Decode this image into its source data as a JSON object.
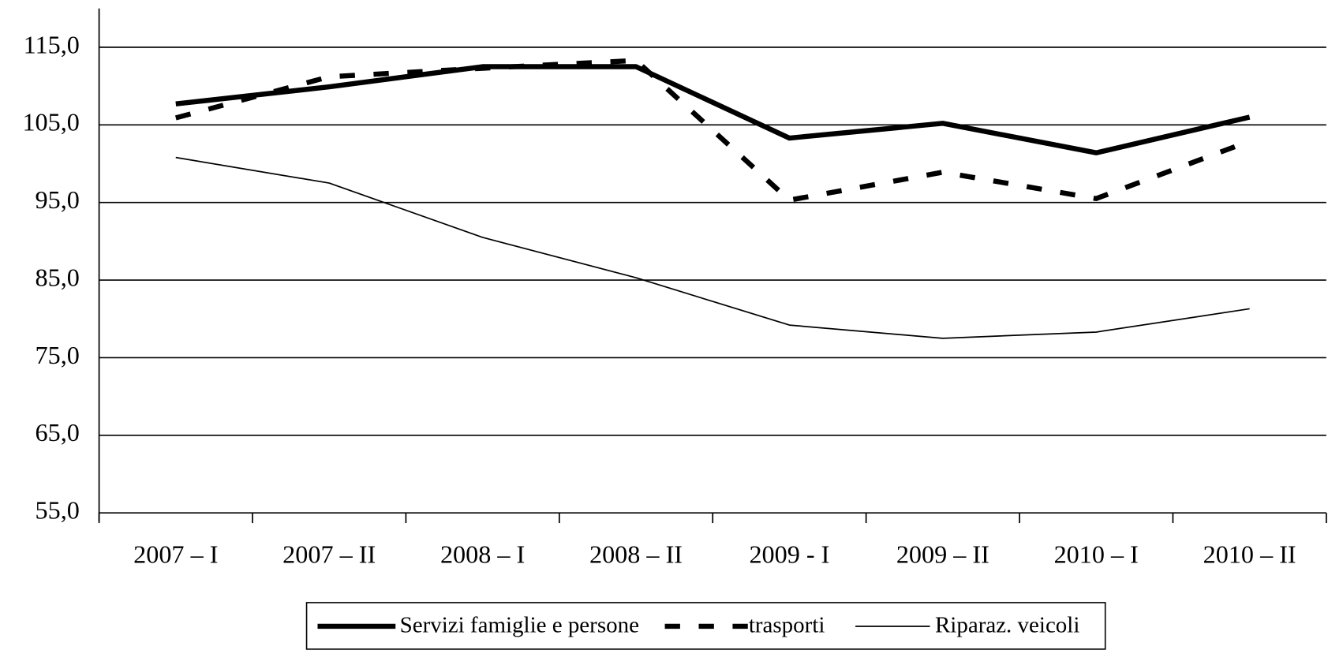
{
  "chart_data": {
    "type": "line",
    "categories": [
      "2007 – I",
      "2007 – II",
      "2008 – I",
      "2008 – II",
      "2009 - I",
      "2009 – II",
      "2010 – I",
      "2010 – II"
    ],
    "series": [
      {
        "name": "Servizi famiglie e persone",
        "color": "#000000",
        "linestyle": "thick",
        "values": [
          107.7,
          109.9,
          112.5,
          112.5,
          103.3,
          105.2,
          101.4,
          106.0
        ]
      },
      {
        "name": "trasporti",
        "color": "#000000",
        "linestyle": "dashed",
        "values": [
          105.9,
          111.2,
          112.3,
          113.3,
          95.3,
          98.9,
          95.5,
          102.9
        ]
      },
      {
        "name": "Riparaz. veicoli",
        "color": "#000000",
        "linestyle": "thin",
        "values": [
          100.8,
          97.5,
          90.5,
          85.3,
          79.2,
          77.5,
          78.3,
          81.3
        ]
      }
    ],
    "ylim": [
      55,
      120
    ],
    "yticks": [
      {
        "value": 55,
        "label": "55,0"
      },
      {
        "value": 65,
        "label": "65,0"
      },
      {
        "value": 75,
        "label": "75,0"
      },
      {
        "value": 85,
        "label": "85,0"
      },
      {
        "value": 95,
        "label": "95,0"
      },
      {
        "value": 105,
        "label": "105,0"
      },
      {
        "value": 115,
        "label": "115,0"
      }
    ],
    "grid": true,
    "legend": "bottom"
  }
}
